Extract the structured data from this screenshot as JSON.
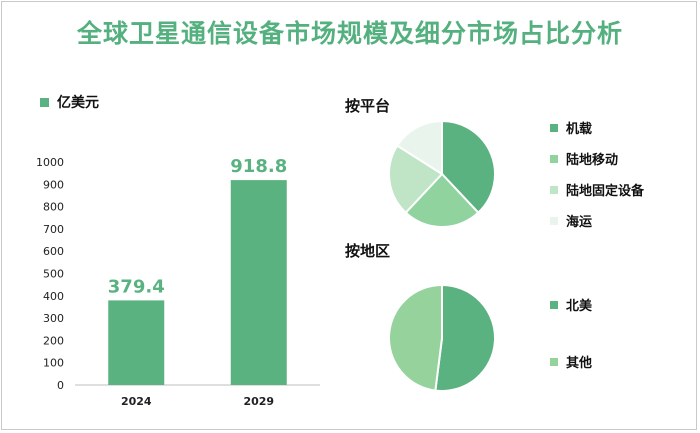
{
  "title": "全球卫星通信设备市场规模及细分市场占比分析",
  "colors": {
    "title": "#55b07f",
    "bar": "#5bb281",
    "label": "#5bb281"
  },
  "chart_data": [
    {
      "type": "bar",
      "legend": "亿美元",
      "categories": [
        "2024",
        "2029"
      ],
      "values": [
        379.4,
        918.8
      ],
      "data_labels": [
        "379.4",
        "918.8"
      ],
      "ylim": [
        0,
        1000
      ],
      "yticks": [
        "0",
        "100",
        "200",
        "300",
        "400",
        "500",
        "600",
        "700",
        "800",
        "900",
        "1000"
      ],
      "grid": false
    },
    {
      "type": "pie",
      "title": "按平台",
      "labels": [
        "机载",
        "陆地移动",
        "陆地固定设备",
        "海运"
      ],
      "values": [
        38,
        24,
        22,
        16
      ],
      "colors": [
        "#5bb281",
        "#90d39f",
        "#bfe5c6",
        "#e9f5ec"
      ]
    },
    {
      "type": "pie",
      "title": "按地区",
      "labels": [
        "北美",
        "其他"
      ],
      "values": [
        52,
        48
      ],
      "colors": [
        "#5bb281",
        "#95d29c"
      ]
    }
  ]
}
